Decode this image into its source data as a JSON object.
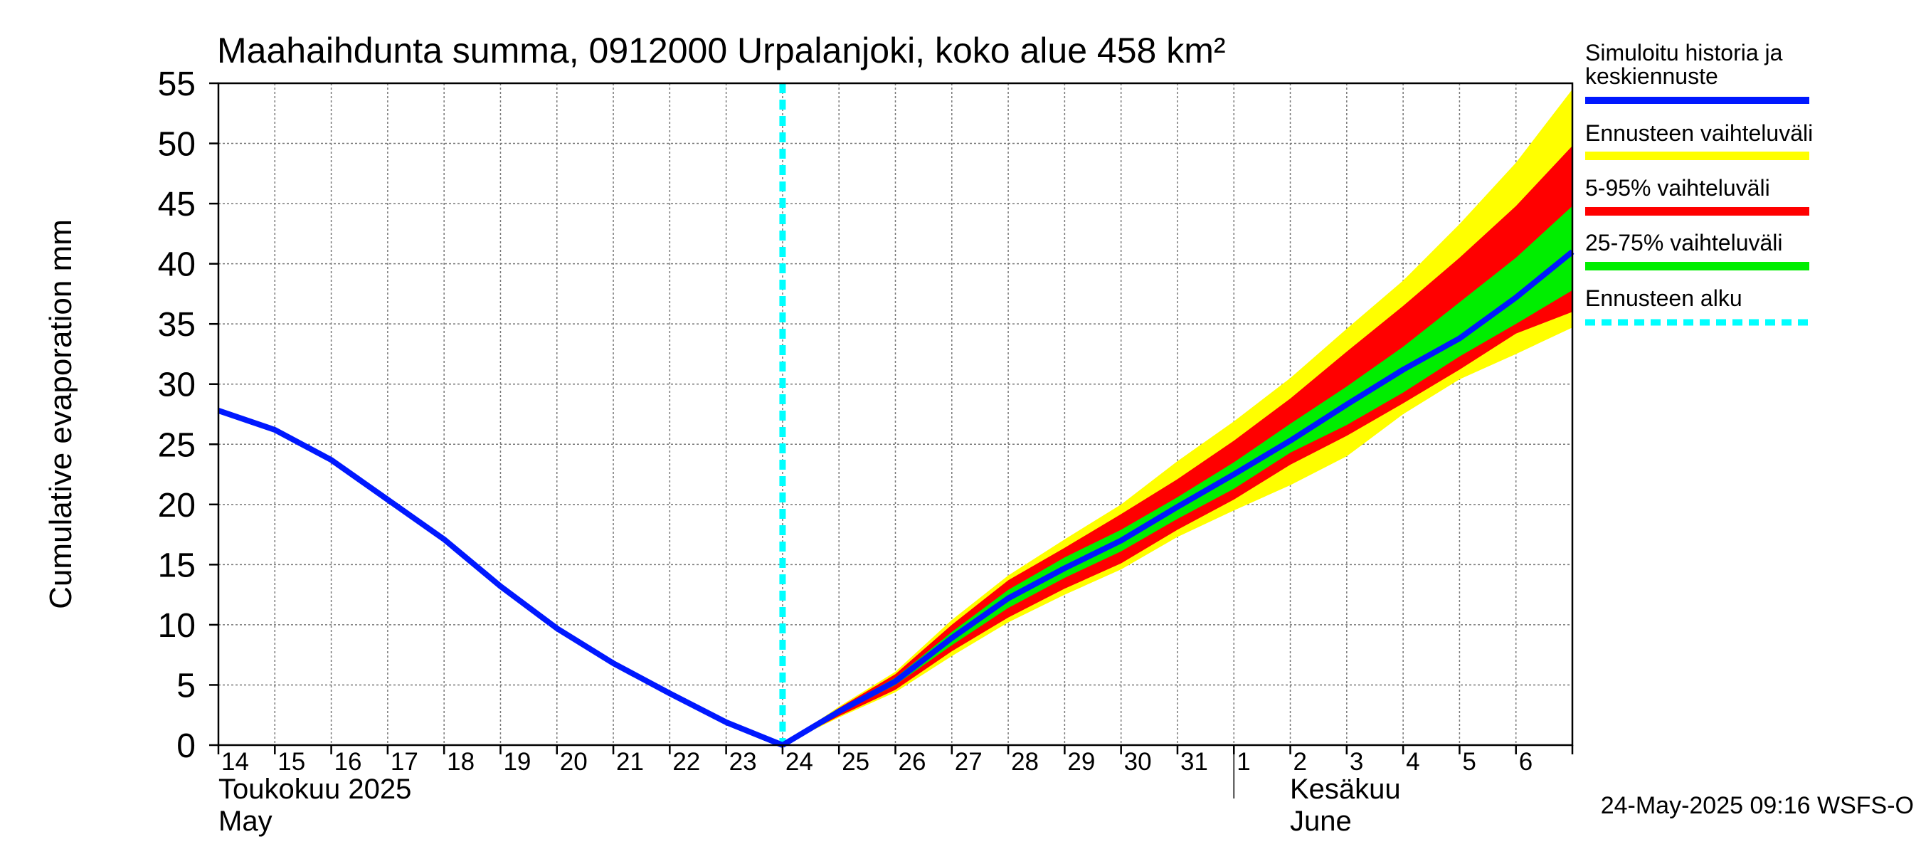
{
  "chart_data": {
    "type": "area",
    "title": "Maahaihdunta summa, 0912000 Urpalanjoki, koko alue 458 km²",
    "ylabel": "Cumulative evaporation   mm",
    "ylim": [
      0,
      55
    ],
    "yticks": [
      0,
      5,
      10,
      15,
      20,
      25,
      30,
      35,
      40,
      45,
      50,
      55
    ],
    "xlim": [
      "2025-05-14",
      "2025-06-07"
    ],
    "x_tick_labels": [
      "14",
      "15",
      "16",
      "17",
      "18",
      "19",
      "20",
      "21",
      "22",
      "23",
      "24",
      "25",
      "26",
      "27",
      "28",
      "29",
      "30",
      "31",
      "1",
      "2",
      "3",
      "4",
      "5",
      "6"
    ],
    "month_labels": [
      {
        "line1": "Toukokuu  2025",
        "line2": "May"
      },
      {
        "line1": "Kesäkuu",
        "line2": "June"
      }
    ],
    "grid": true,
    "forecast_start": "2025-05-24",
    "history": {
      "x": [
        "2025-05-14",
        "2025-05-15",
        "2025-05-16",
        "2025-05-17",
        "2025-05-18",
        "2025-05-19",
        "2025-05-20",
        "2025-05-21",
        "2025-05-22",
        "2025-05-23",
        "2025-05-24"
      ],
      "values": [
        27.8,
        26.2,
        23.7,
        20.4,
        17.1,
        13.2,
        9.7,
        6.8,
        4.3,
        1.9,
        0.0
      ]
    },
    "forecast": {
      "x": [
        "2025-05-24",
        "2025-05-25",
        "2025-05-26",
        "2025-05-27",
        "2025-05-28",
        "2025-05-29",
        "2025-05-30",
        "2025-05-31",
        "2025-06-01",
        "2025-06-02",
        "2025-06-03",
        "2025-06-04",
        "2025-06-05",
        "2025-06-06",
        "2025-06-07"
      ],
      "median": [
        0.0,
        2.8,
        5.3,
        8.9,
        12.2,
        14.7,
        17.0,
        19.8,
        22.5,
        25.3,
        28.3,
        31.2,
        33.8,
        37.2,
        41.0
      ],
      "p25": [
        0.0,
        2.6,
        5.0,
        8.3,
        11.4,
        13.9,
        16.1,
        18.8,
        21.3,
        24.3,
        26.6,
        29.3,
        32.3,
        35.0,
        37.8
      ],
      "p75": [
        0.0,
        3.0,
        5.6,
        9.4,
        12.9,
        15.6,
        17.9,
        20.6,
        23.5,
        26.7,
        29.8,
        33.1,
        36.8,
        40.5,
        44.8
      ],
      "p5": [
        0.0,
        2.4,
        4.6,
        7.8,
        10.6,
        13.0,
        15.1,
        17.9,
        20.4,
        23.3,
        25.7,
        28.4,
        31.2,
        34.2,
        36.0
      ],
      "p95": [
        0.0,
        3.1,
        5.9,
        10.0,
        13.7,
        16.4,
        19.2,
        22.1,
        25.3,
        28.8,
        32.7,
        36.5,
        40.5,
        44.8,
        49.8
      ],
      "min": [
        0.0,
        2.3,
        4.4,
        7.4,
        10.2,
        12.5,
        14.6,
        17.3,
        19.5,
        21.6,
        24.0,
        27.5,
        30.4,
        32.5,
        34.7
      ],
      "max": [
        0.0,
        3.2,
        6.1,
        10.4,
        14.1,
        17.1,
        20.0,
        23.6,
        26.9,
        30.5,
        34.6,
        38.6,
        43.3,
        48.4,
        54.5
      ]
    },
    "legend": [
      {
        "label": "Simuloitu historia ja\nkeskiennuste",
        "color": "#0018ff",
        "style": "line"
      },
      {
        "label": "Ennusteen vaihteluväli",
        "color": "#ffff00",
        "style": "band"
      },
      {
        "label": "5-95% vaihteluväli",
        "color": "#ff0000",
        "style": "band"
      },
      {
        "label": "25-75% vaihteluväli",
        "color": "#00ee00",
        "style": "band"
      },
      {
        "label": "Ennusteen alku",
        "color": "#00ffff",
        "style": "dashed"
      }
    ],
    "legend_position": "right",
    "footer": "24-May-2025 09:16 WSFS-O"
  }
}
